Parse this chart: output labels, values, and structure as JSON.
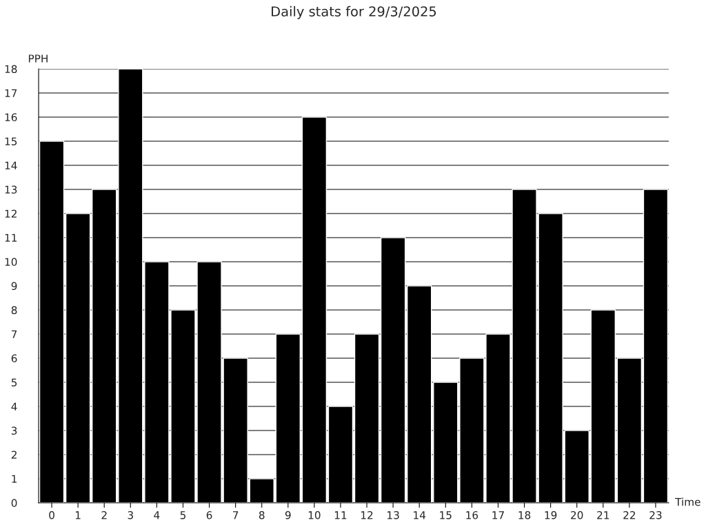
{
  "chart_data": {
    "type": "bar",
    "title": "Daily stats for 29/3/2025",
    "xlabel": "Time",
    "ylabel": "PPH",
    "categories": [
      "0",
      "1",
      "2",
      "3",
      "4",
      "5",
      "6",
      "7",
      "8",
      "9",
      "10",
      "11",
      "12",
      "13",
      "14",
      "15",
      "16",
      "17",
      "18",
      "19",
      "20",
      "21",
      "22",
      "23"
    ],
    "values": [
      15,
      12,
      13,
      18,
      10,
      8,
      10,
      6,
      1,
      7,
      16,
      4,
      7,
      11,
      9,
      5,
      6,
      7,
      13,
      12,
      3,
      8,
      6,
      13
    ],
    "color": "#000000",
    "ylim": [
      0,
      18
    ],
    "yticks": [
      0,
      1,
      2,
      3,
      4,
      5,
      6,
      7,
      8,
      9,
      10,
      11,
      12,
      13,
      14,
      15,
      16,
      17,
      18
    ],
    "grid": "y"
  }
}
